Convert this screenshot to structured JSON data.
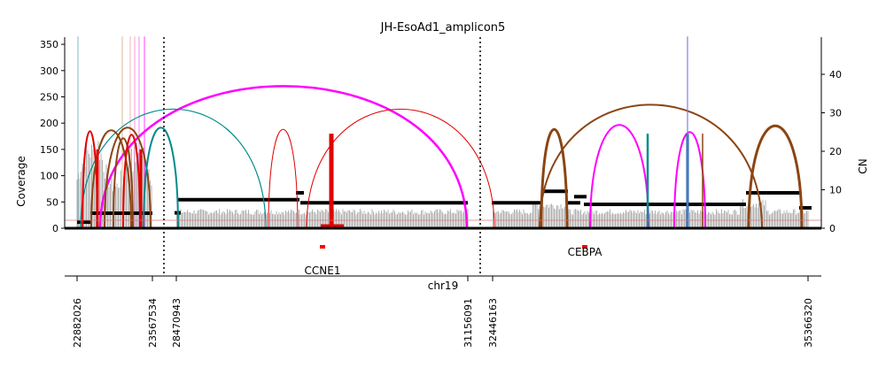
{
  "chart_data": {
    "type": "amplicon-coverage-plot",
    "title": "JH-EsoAd1_amplicon5",
    "ylabel_left": "Coverage",
    "ylabel_right": "CN",
    "xlabel": "chr19",
    "ylim_left": [
      0,
      365
    ],
    "ylim_right": [
      0,
      50
    ],
    "yticks_left": [
      0,
      50,
      100,
      150,
      200,
      250,
      300,
      350
    ],
    "yticks_right": [
      0,
      10,
      20,
      30,
      40
    ],
    "segment_boundaries": [
      "22882026",
      "23567534",
      "28470943",
      "31156091",
      "32446163",
      "35366320"
    ],
    "segment_separators": [
      "23567534/28470943",
      "31156091/32446163"
    ],
    "genes": [
      {
        "name": "CCNE1"
      },
      {
        "name": "CEBPA"
      }
    ],
    "colors": {
      "coverage": "#b0b0b0",
      "cn_segments": "#000000",
      "arc_red": "#e00000",
      "arc_magenta": "#ff00ff",
      "arc_teal": "#008b8b",
      "arc_brown": "#8b4513",
      "arc_blue": "#1060a0",
      "gene": "#ff0000"
    }
  }
}
